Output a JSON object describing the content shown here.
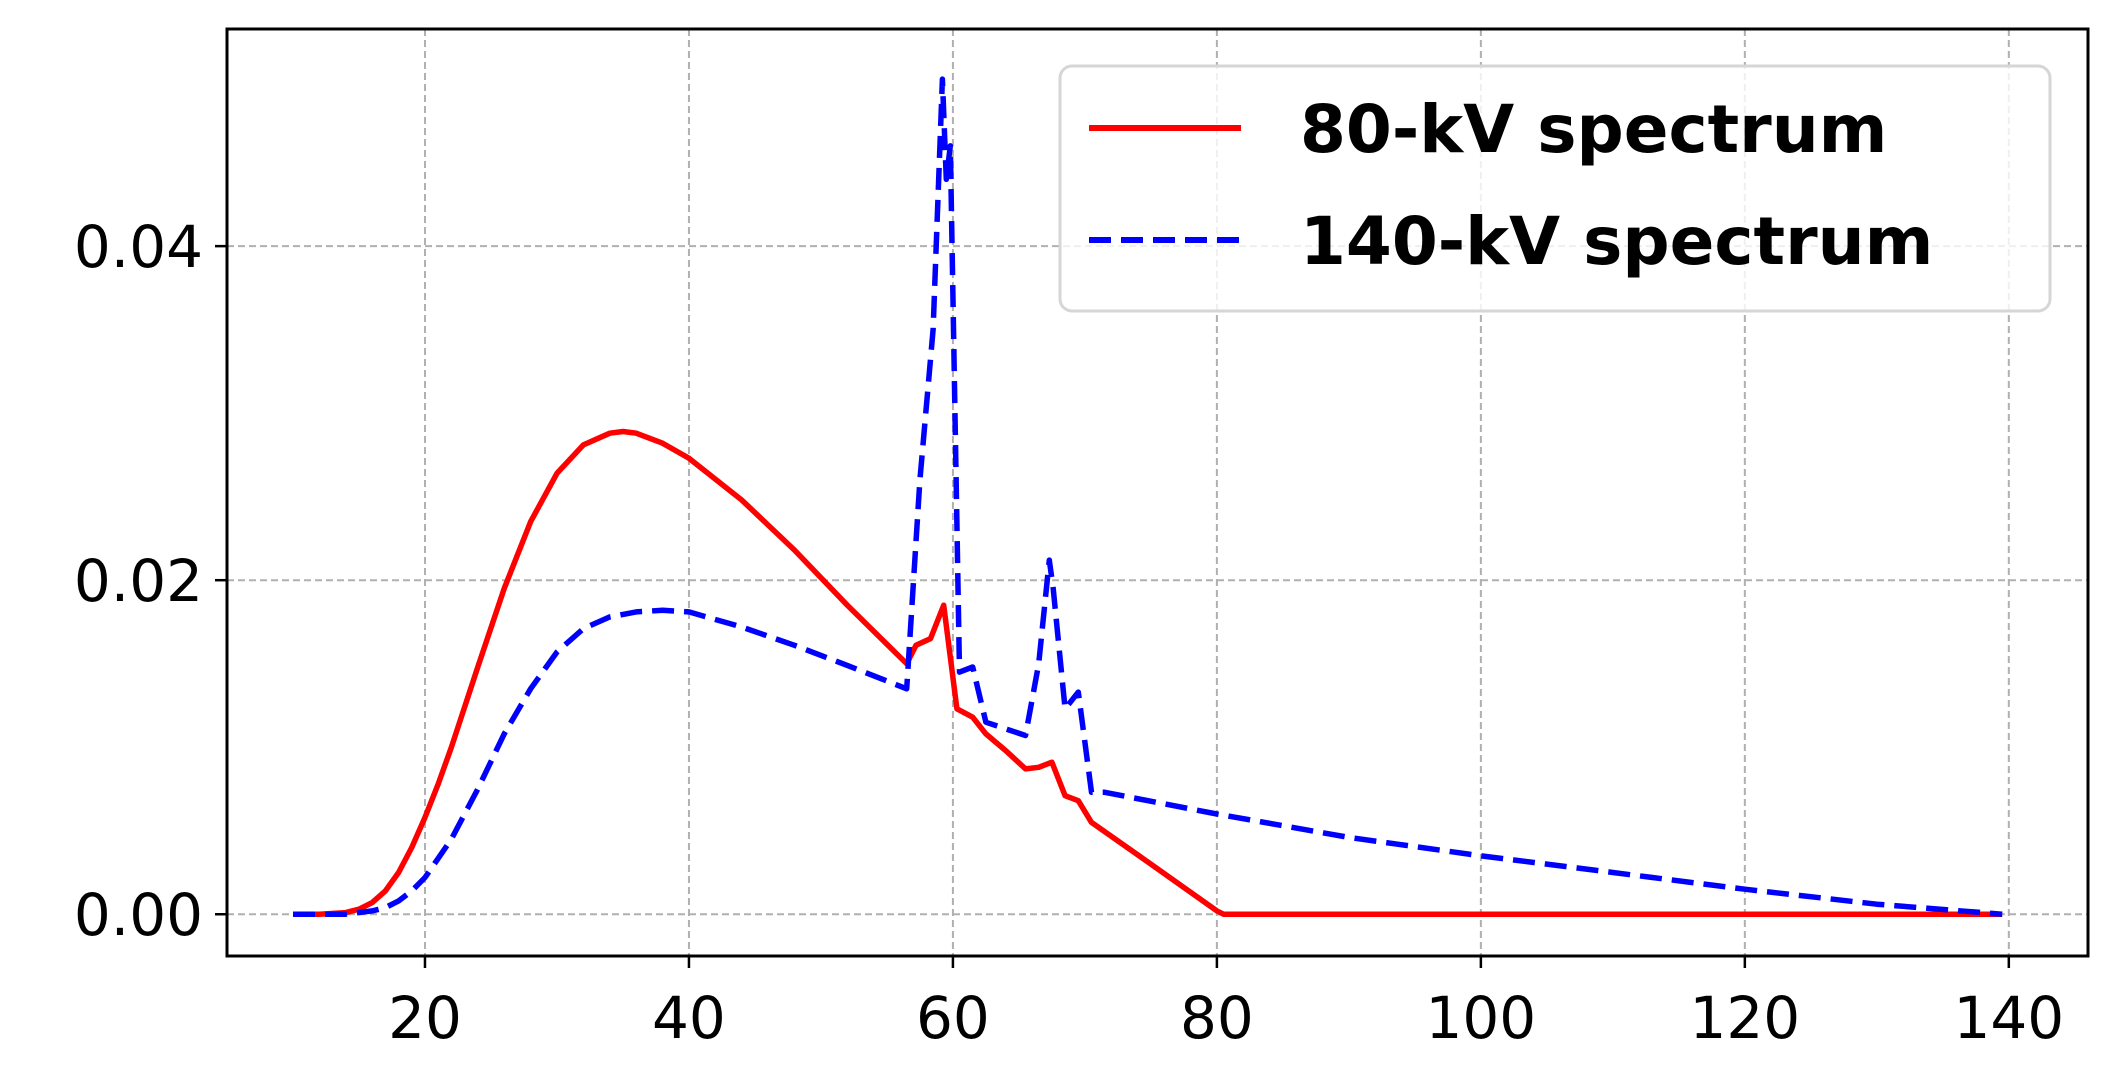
{
  "chart_data": {
    "type": "line",
    "title": "",
    "xlabel": "",
    "ylabel": "",
    "xlim": [
      5,
      146
    ],
    "ylim": [
      -0.0025,
      0.053
    ],
    "xticks": [
      20,
      40,
      60,
      80,
      100,
      120,
      140
    ],
    "yticks": [
      0.0,
      0.02,
      0.04
    ],
    "xtick_labels": [
      "20",
      "40",
      "60",
      "80",
      "100",
      "120",
      "140"
    ],
    "ytick_labels": [
      "0.00",
      "0.02",
      "0.04"
    ],
    "grid": true,
    "legend_position": "top-right",
    "series": [
      {
        "name": "80-kV spectrum",
        "color": "#ff0000",
        "style": "solid",
        "x": [
          10,
          12,
          14,
          15,
          16,
          17,
          18,
          19,
          20,
          21,
          22,
          24,
          26,
          28,
          30,
          32,
          34,
          35,
          36,
          38,
          40,
          44,
          48,
          52,
          56.5,
          57.2,
          58.3,
          59.3,
          60.3,
          61.5,
          62.5,
          64,
          65.5,
          66.5,
          67.5,
          68.5,
          69.5,
          70.5,
          75,
          80,
          80.5,
          85,
          90,
          100,
          110,
          120,
          130,
          139.5
        ],
        "y": [
          0.0,
          0.0,
          0.0001,
          0.0003,
          0.0007,
          0.0014,
          0.0025,
          0.004,
          0.0058,
          0.0078,
          0.01,
          0.0148,
          0.0195,
          0.0235,
          0.0264,
          0.0281,
          0.0288,
          0.0289,
          0.0288,
          0.0282,
          0.0273,
          0.0248,
          0.0218,
          0.0185,
          0.015,
          0.0161,
          0.0165,
          0.0185,
          0.0123,
          0.0118,
          0.0108,
          0.0098,
          0.0087,
          0.0088,
          0.0091,
          0.0071,
          0.0068,
          0.0055,
          0.003,
          0.0002,
          0.0,
          0.0,
          0.0,
          0.0,
          0.0,
          0.0,
          0.0,
          0.0
        ]
      },
      {
        "name": "140-kV spectrum",
        "color": "#0000ff",
        "style": "dashed",
        "x": [
          10,
          14,
          16,
          17,
          18,
          19,
          20,
          22,
          24,
          26,
          28,
          30,
          32,
          34,
          36,
          38,
          40,
          44,
          48,
          52,
          56.5,
          57.5,
          58.5,
          59.2,
          59.5,
          59.8,
          60.5,
          61.5,
          62.5,
          65.5,
          66.5,
          67.3,
          67.6,
          68.5,
          69.5,
          70.5,
          71.5,
          80,
          90,
          100,
          110,
          120,
          130,
          139.5
        ],
        "y": [
          0.0,
          0.0,
          0.0002,
          0.0004,
          0.0008,
          0.0014,
          0.0022,
          0.0045,
          0.0075,
          0.0108,
          0.0135,
          0.0157,
          0.0171,
          0.0178,
          0.0181,
          0.0182,
          0.0181,
          0.0172,
          0.0161,
          0.0149,
          0.0135,
          0.026,
          0.035,
          0.05,
          0.044,
          0.046,
          0.0145,
          0.0148,
          0.0115,
          0.0107,
          0.015,
          0.0212,
          0.0195,
          0.0123,
          0.0133,
          0.0073,
          0.0073,
          0.006,
          0.0046,
          0.0035,
          0.0025,
          0.0015,
          0.0006,
          0.0
        ]
      }
    ]
  }
}
